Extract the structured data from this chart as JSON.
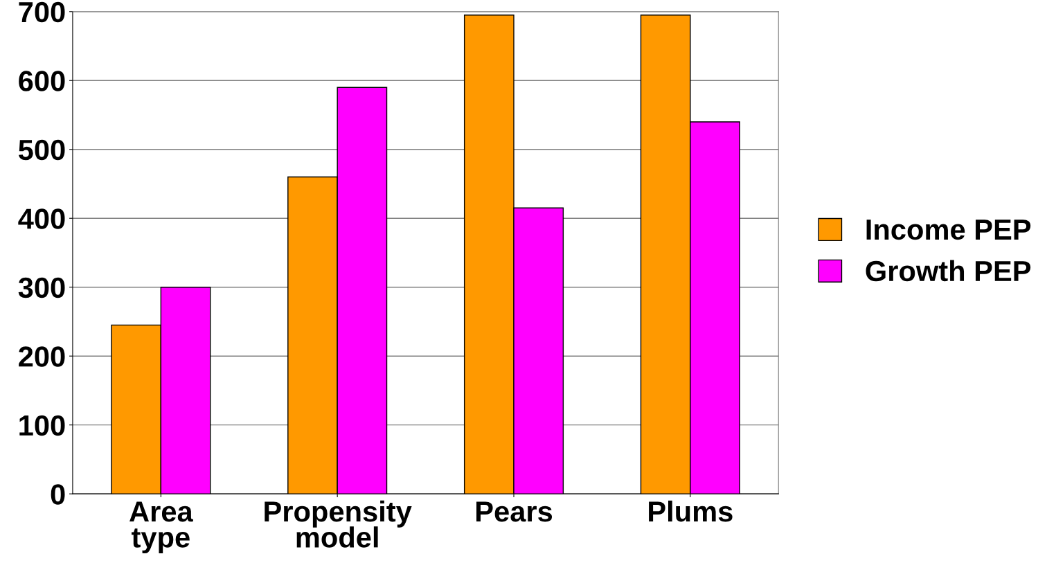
{
  "chart_data": {
    "type": "bar",
    "categories": [
      "Area\ntype",
      "Propensity\nmodel",
      "Pears",
      "Plums"
    ],
    "series": [
      {
        "name": "Income PEP",
        "color": "#ff9900",
        "values": [
          245,
          460,
          695,
          695
        ]
      },
      {
        "name": "Growth PEP",
        "color": "#ff00ff",
        "values": [
          300,
          590,
          415,
          540
        ]
      }
    ],
    "ylim": [
      0,
      700
    ],
    "yticks": [
      0,
      100,
      200,
      300,
      400,
      500,
      600,
      700
    ],
    "grid": "y",
    "legend": "right"
  }
}
